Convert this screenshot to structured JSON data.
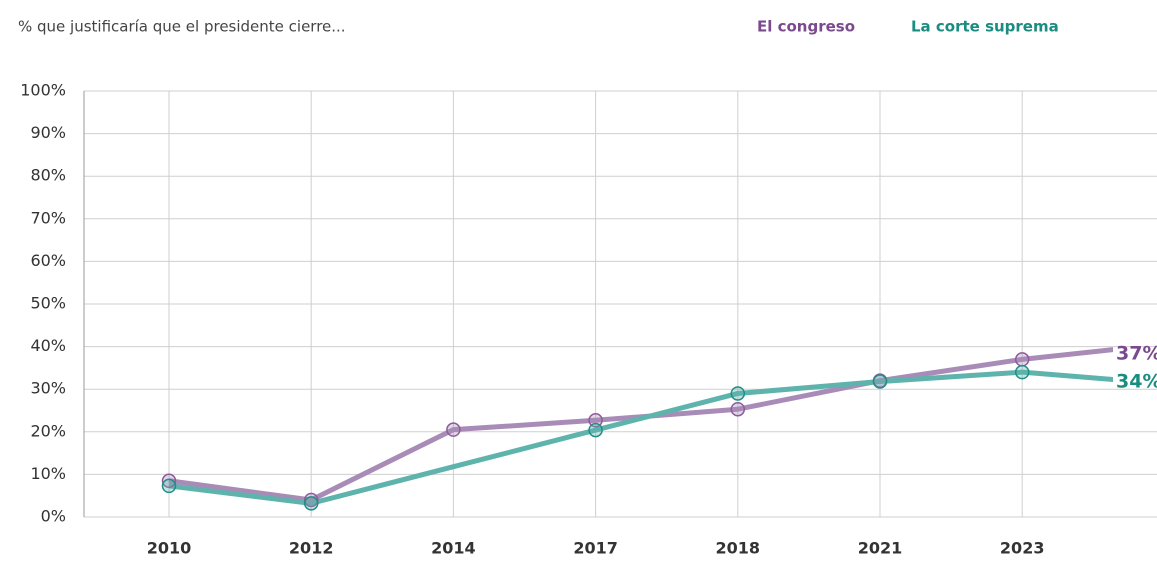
{
  "chart_data": {
    "type": "line",
    "title": "% que justificaría que el presidente cierre...",
    "categories": [
      "2010",
      "2012",
      "2014",
      "2017",
      "2018",
      "2021",
      "2023",
      null
    ],
    "series": [
      {
        "name": "El congreso",
        "color": "#a98bb8",
        "marker_color": "#8e5a9b",
        "label_color": "#7b4a8e",
        "label": "37%",
        "values": [
          8.5,
          4,
          20.5,
          22.7,
          25.3,
          32,
          37,
          40.6
        ]
      },
      {
        "name": "La corte suprema",
        "color": "#5fb3ad",
        "marker_color": "#1f8f84",
        "label_color": "#1a8c80",
        "label": "34%",
        "values": [
          7.3,
          3.2,
          11.8,
          20.4,
          29,
          31.8,
          34,
          31.3
        ]
      }
    ],
    "ylim": [
      0,
      100
    ],
    "yticks": [
      {
        "value": 0,
        "label": "0%"
      },
      {
        "value": 10,
        "label": "10%"
      },
      {
        "value": 20,
        "label": "20%"
      },
      {
        "value": 30,
        "label": "30%"
      },
      {
        "value": 40,
        "label": "40%"
      },
      {
        "value": 50,
        "label": "50%"
      },
      {
        "value": 60,
        "label": "60%"
      },
      {
        "value": 70,
        "label": "70%"
      },
      {
        "value": 80,
        "label": "80%"
      },
      {
        "value": 90,
        "label": "90%"
      },
      {
        "value": 100,
        "label": "100%"
      }
    ],
    "grid": true
  }
}
